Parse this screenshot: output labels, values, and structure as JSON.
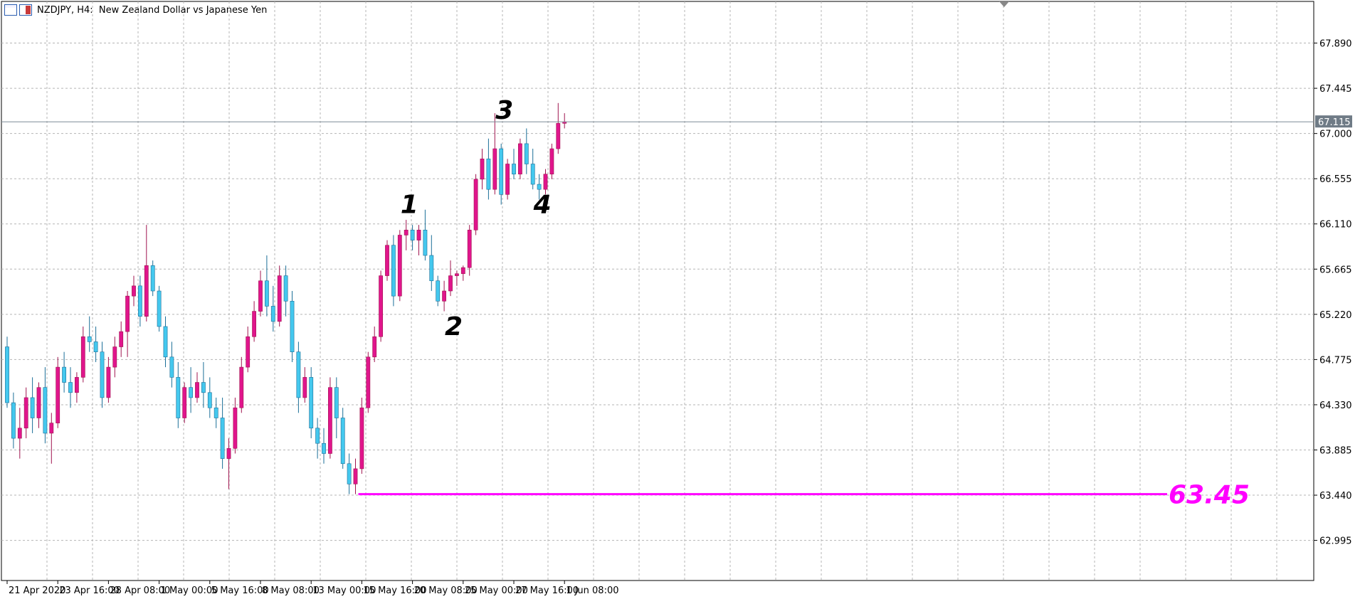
{
  "window": {
    "title": "NZDJPY, H4:  New Zealand Dollar vs Japanese Yen",
    "icons": [
      "chart-window-icon",
      "chart-type-icon"
    ]
  },
  "colors": {
    "bull_body": "#e0158c",
    "bear_body": "#44c8ee",
    "wick_bull": "#a0154f",
    "wick_bear": "#1b6f98",
    "grid": "#b5b5b5",
    "current_price_line": "#7f8c97",
    "current_price_box": "#6f7b86",
    "level_line": "#ff00ff"
  },
  "current_price": {
    "label": "67.115",
    "value": 67.115
  },
  "annotations": {
    "waves": [
      {
        "text": "1",
        "x_index": 63,
        "y": 66.3
      },
      {
        "text": "2",
        "x_index": 70,
        "y": 65.1
      },
      {
        "text": "3",
        "x_index": 78,
        "y": 67.23
      },
      {
        "text": "4",
        "x_index": 84,
        "y": 66.3
      }
    ],
    "level": {
      "text": "63.45",
      "value": 63.45,
      "from_index": 55
    }
  },
  "chart_data": {
    "type": "candlestick",
    "symbol": "NZDJPY",
    "timeframe": "H4",
    "ylim": [
      62.6,
      68.3
    ],
    "y_ticks": [
      "67.890",
      "67.445",
      "67.000",
      "66.555",
      "66.110",
      "65.665",
      "65.220",
      "64.775",
      "64.330",
      "63.885",
      "63.440",
      "62.995"
    ],
    "x_ticks": [
      {
        "label": "21 Apr 2020",
        "index": 0
      },
      {
        "label": "23 Apr 16:00",
        "index": 8
      },
      {
        "label": "28 Apr 08:00",
        "index": 16
      },
      {
        "label": "1 May 00:00",
        "index": 24
      },
      {
        "label": "5 May 16:00",
        "index": 32
      },
      {
        "label": "8 May 08:00",
        "index": 40
      },
      {
        "label": "13 May 00:00",
        "index": 48
      },
      {
        "label": "15 May 16:00",
        "index": 56
      },
      {
        "label": "20 May 08:00",
        "index": 64
      },
      {
        "label": "25 May 00:00",
        "index": 72
      },
      {
        "label": "27 May 16:00",
        "index": 80
      },
      {
        "label": "1 Jun 08:00",
        "index": 88
      }
    ],
    "candles": [
      [
        64.9,
        65.0,
        64.3,
        64.35
      ],
      [
        64.35,
        64.45,
        63.9,
        64.0
      ],
      [
        64.0,
        64.3,
        63.8,
        64.1
      ],
      [
        64.1,
        64.5,
        64.0,
        64.4
      ],
      [
        64.4,
        64.6,
        64.05,
        64.2
      ],
      [
        64.2,
        64.55,
        64.1,
        64.5
      ],
      [
        64.5,
        64.7,
        63.95,
        64.05
      ],
      [
        64.05,
        64.25,
        63.75,
        64.15
      ],
      [
        64.15,
        64.8,
        64.1,
        64.7
      ],
      [
        64.7,
        64.85,
        64.45,
        64.55
      ],
      [
        64.55,
        64.7,
        64.3,
        64.45
      ],
      [
        64.45,
        64.65,
        64.35,
        64.6
      ],
      [
        64.6,
        65.1,
        64.55,
        65.0
      ],
      [
        65.0,
        65.2,
        64.85,
        64.95
      ],
      [
        64.95,
        65.1,
        64.75,
        64.85
      ],
      [
        64.85,
        64.95,
        64.3,
        64.4
      ],
      [
        64.4,
        64.8,
        64.35,
        64.7
      ],
      [
        64.7,
        65.0,
        64.6,
        64.9
      ],
      [
        64.9,
        65.15,
        64.8,
        65.05
      ],
      [
        65.05,
        65.45,
        64.8,
        65.4
      ],
      [
        65.4,
        65.6,
        65.3,
        65.5
      ],
      [
        65.5,
        65.6,
        65.1,
        65.2
      ],
      [
        65.2,
        66.1,
        65.15,
        65.7
      ],
      [
        65.7,
        65.75,
        65.4,
        65.45
      ],
      [
        65.45,
        65.5,
        65.05,
        65.1
      ],
      [
        65.1,
        65.2,
        64.7,
        64.8
      ],
      [
        64.8,
        64.95,
        64.5,
        64.6
      ],
      [
        64.6,
        64.75,
        64.1,
        64.2
      ],
      [
        64.2,
        64.55,
        64.15,
        64.5
      ],
      [
        64.5,
        64.7,
        64.25,
        64.4
      ],
      [
        64.4,
        64.65,
        64.35,
        64.55
      ],
      [
        64.55,
        64.75,
        64.3,
        64.45
      ],
      [
        64.45,
        64.6,
        64.2,
        64.3
      ],
      [
        64.3,
        64.4,
        64.1,
        64.2
      ],
      [
        64.2,
        64.4,
        63.7,
        63.8
      ],
      [
        63.8,
        64.0,
        63.5,
        63.9
      ],
      [
        63.9,
        64.4,
        63.85,
        64.3
      ],
      [
        64.3,
        64.8,
        64.25,
        64.7
      ],
      [
        64.7,
        65.1,
        64.65,
        65.0
      ],
      [
        65.0,
        65.35,
        64.95,
        65.25
      ],
      [
        65.25,
        65.65,
        65.2,
        65.55
      ],
      [
        65.55,
        65.8,
        65.2,
        65.3
      ],
      [
        65.3,
        65.5,
        65.05,
        65.15
      ],
      [
        65.15,
        65.7,
        65.1,
        65.6
      ],
      [
        65.6,
        65.7,
        65.2,
        65.35
      ],
      [
        65.35,
        65.45,
        64.75,
        64.85
      ],
      [
        64.85,
        64.95,
        64.25,
        64.4
      ],
      [
        64.4,
        64.7,
        64.35,
        64.6
      ],
      [
        64.6,
        64.7,
        64.0,
        64.1
      ],
      [
        64.1,
        64.2,
        63.8,
        63.95
      ],
      [
        63.95,
        64.1,
        63.75,
        63.85
      ],
      [
        63.85,
        64.6,
        63.8,
        64.5
      ],
      [
        64.5,
        64.6,
        64.0,
        64.2
      ],
      [
        64.2,
        64.3,
        63.7,
        63.75
      ],
      [
        63.75,
        63.85,
        63.45,
        63.55
      ],
      [
        63.55,
        63.8,
        63.45,
        63.7
      ],
      [
        63.7,
        64.4,
        63.65,
        64.3
      ],
      [
        64.3,
        64.85,
        64.25,
        64.8
      ],
      [
        64.8,
        65.1,
        64.75,
        65.0
      ],
      [
        65.0,
        65.65,
        64.95,
        65.6
      ],
      [
        65.6,
        65.95,
        65.55,
        65.9
      ],
      [
        65.9,
        66.0,
        65.3,
        65.4
      ],
      [
        65.4,
        66.05,
        65.35,
        66.0
      ],
      [
        66.0,
        66.15,
        65.85,
        66.05
      ],
      [
        66.05,
        66.1,
        65.85,
        65.95
      ],
      [
        65.95,
        66.1,
        65.8,
        66.05
      ],
      [
        66.05,
        66.25,
        65.75,
        65.8
      ],
      [
        65.8,
        66.0,
        65.45,
        65.55
      ],
      [
        65.55,
        65.6,
        65.3,
        65.35
      ],
      [
        65.35,
        65.55,
        65.25,
        65.45
      ],
      [
        65.45,
        65.75,
        65.4,
        65.6
      ],
      [
        65.6,
        65.65,
        65.5,
        65.62
      ],
      [
        65.62,
        65.7,
        65.55,
        65.68
      ],
      [
        65.68,
        66.1,
        65.6,
        66.05
      ],
      [
        66.05,
        66.6,
        66.0,
        66.55
      ],
      [
        66.55,
        66.85,
        66.45,
        66.75
      ],
      [
        66.75,
        66.95,
        66.35,
        66.45
      ],
      [
        66.45,
        67.2,
        66.4,
        66.85
      ],
      [
        66.85,
        66.9,
        66.3,
        66.4
      ],
      [
        66.4,
        66.75,
        66.35,
        66.7
      ],
      [
        66.7,
        66.85,
        66.55,
        66.6
      ],
      [
        66.6,
        66.95,
        66.55,
        66.9
      ],
      [
        66.9,
        67.05,
        66.6,
        66.7
      ],
      [
        66.7,
        66.85,
        66.45,
        66.5
      ],
      [
        66.5,
        66.6,
        66.35,
        66.45
      ],
      [
        66.45,
        66.65,
        66.4,
        66.6
      ],
      [
        66.6,
        66.9,
        66.55,
        66.85
      ],
      [
        66.85,
        67.3,
        66.8,
        67.1
      ],
      [
        67.1,
        67.2,
        67.05,
        67.115
      ]
    ]
  }
}
